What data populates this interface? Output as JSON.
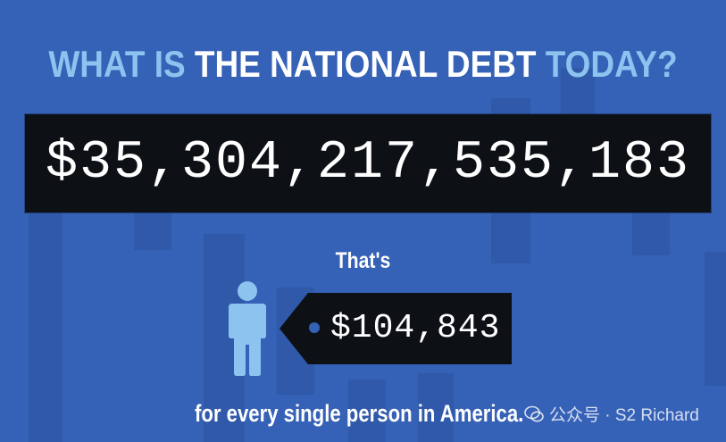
{
  "headline": {
    "part1": "WHAT IS ",
    "part2": "THE NATIONAL DEBT",
    "part3": " TODAY?"
  },
  "debt": {
    "value": "$35,304,217,535,183"
  },
  "per_person": {
    "intro": "That's",
    "value": "$104,843",
    "icon": "person-icon"
  },
  "footer": {
    "text": "for every single person in America."
  },
  "watermark": {
    "text": "公众号 · S2 Richard",
    "icon": "wechat-icon"
  },
  "colors": {
    "background": "#3561b6",
    "headline_light": "#8cc3ef",
    "box": "#0d1116",
    "person": "#8cc3ef"
  }
}
